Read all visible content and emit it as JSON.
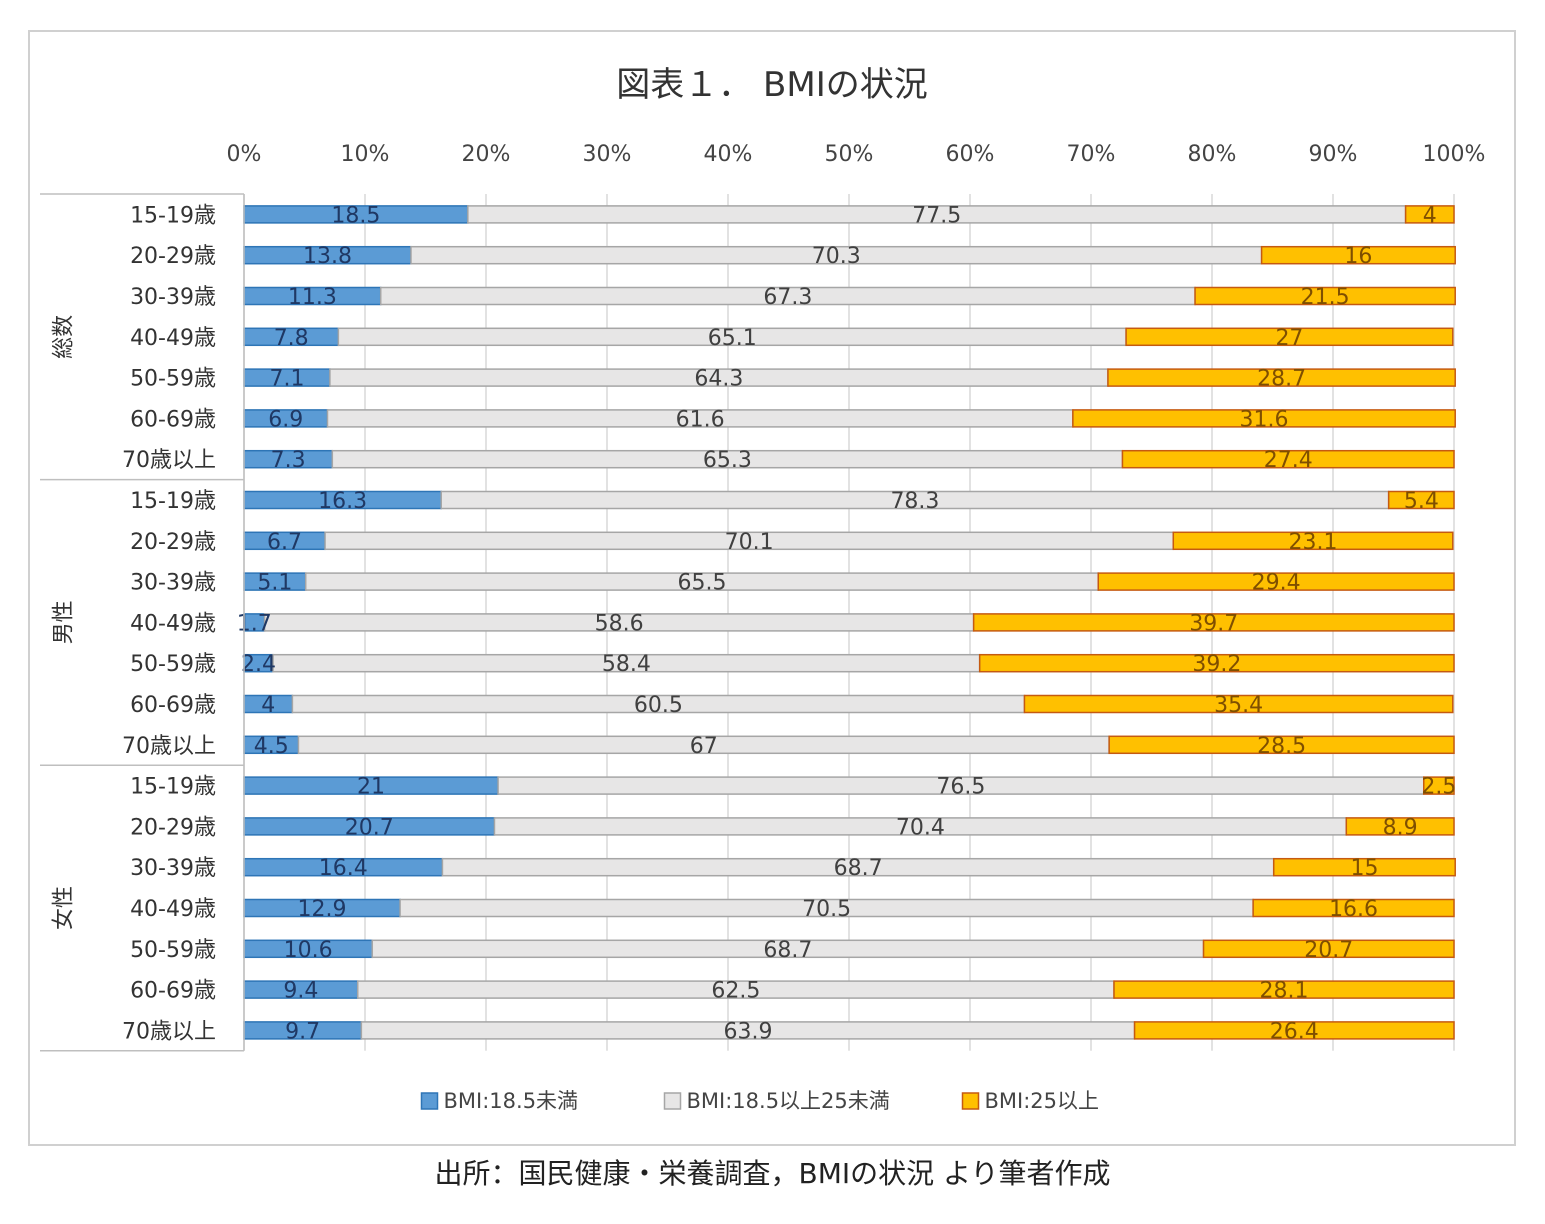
{
  "chart_data": {
    "type": "bar",
    "orientation": "horizontal",
    "stacked": "percent",
    "title": "図表１． BMIの状況",
    "x_ticks": [
      "0%",
      "10%",
      "20%",
      "30%",
      "40%",
      "50%",
      "60%",
      "70%",
      "80%",
      "90%",
      "100%"
    ],
    "xlim": [
      0,
      100
    ],
    "grid": "vertical",
    "legend_position": "bottom",
    "groups": [
      {
        "label": "総数",
        "categories": [
          "15-19歳",
          "20-29歳",
          "30-39歳",
          "40-49歳",
          "50-59歳",
          "60-69歳",
          "70歳以上"
        ]
      },
      {
        "label": "男性",
        "categories": [
          "15-19歳",
          "20-29歳",
          "30-39歳",
          "40-49歳",
          "50-59歳",
          "60-69歳",
          "70歳以上"
        ]
      },
      {
        "label": "女性",
        "categories": [
          "15-19歳",
          "20-29歳",
          "30-39歳",
          "40-49歳",
          "50-59歳",
          "60-69歳",
          "70歳以上"
        ]
      }
    ],
    "series": [
      {
        "name": "BMI:18.5未満",
        "color": "#5b9bd5",
        "stroke": "#2e75b6",
        "label_color": "#1f3864",
        "values": [
          18.5,
          13.8,
          11.3,
          7.8,
          7.1,
          6.9,
          7.3,
          16.3,
          6.7,
          5.1,
          1.7,
          2.4,
          4,
          4.5,
          21,
          20.7,
          16.4,
          12.9,
          10.6,
          9.4,
          9.7
        ]
      },
      {
        "name": "BMI:18.5以上25未満",
        "color": "#e7e6e6",
        "stroke": "#a6a6a6",
        "label_color": "#404040",
        "values": [
          77.5,
          70.3,
          67.3,
          65.1,
          64.3,
          61.6,
          65.3,
          78.3,
          70.1,
          65.5,
          58.6,
          58.4,
          60.5,
          67,
          76.5,
          70.4,
          68.7,
          70.5,
          68.7,
          62.5,
          63.9
        ]
      },
      {
        "name": "BMI:25以上",
        "color": "#ffc000",
        "stroke": "#c55a11",
        "label_color": "#7f4f00",
        "values": [
          4,
          16,
          21.5,
          27,
          28.7,
          31.6,
          27.4,
          5.4,
          23.1,
          29.4,
          39.7,
          39.2,
          35.4,
          28.5,
          2.5,
          8.9,
          15,
          16.6,
          20.7,
          28.1,
          26.4
        ]
      }
    ]
  },
  "source_note": "出所：国民健康・栄養調査，BMIの状況 より筆者作成"
}
